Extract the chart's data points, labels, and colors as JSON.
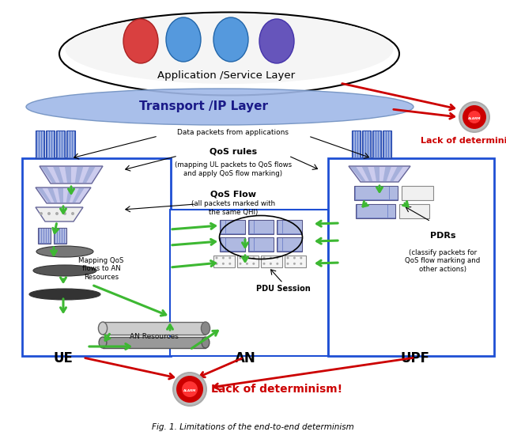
{
  "title": "Fig. 1. Limitations of the end-to-end determinism",
  "bg_color": "#ffffff",
  "app_layer_text": "Application /Service Layer",
  "transport_layer_text": "Transport /IP Layer",
  "lack_text1": "Lack of determinism!",
  "lack_text2": "Lack of determinism!",
  "ue_label": "UE",
  "an_label": "AN",
  "upf_label": "UPF",
  "qos_rules_bold": "QoS rules",
  "qos_rules_sub": "(mapping UL packets to QoS flows\nand apply QoS flow marking)",
  "qos_flow_bold": "QoS Flow",
  "qos_flow_sub": "(all packets marked with\nthe same QHI)",
  "data_packets_text": "Data packets from applications",
  "mapping_text": "Mapping QoS\nflows to AN\nResources",
  "an_resources_text": "AN Resources",
  "pdu_session_text": "PDU Session",
  "pdrs_bold": "PDRs",
  "pdrs_sub": "(classify packets for\nQoS flow marking and\nother actions)",
  "green": "#3db832",
  "red": "#cc0000",
  "blue_box": "#1e4fd4",
  "transport_fill": "#a0b8e8",
  "app_fill": "#e8e8e8"
}
